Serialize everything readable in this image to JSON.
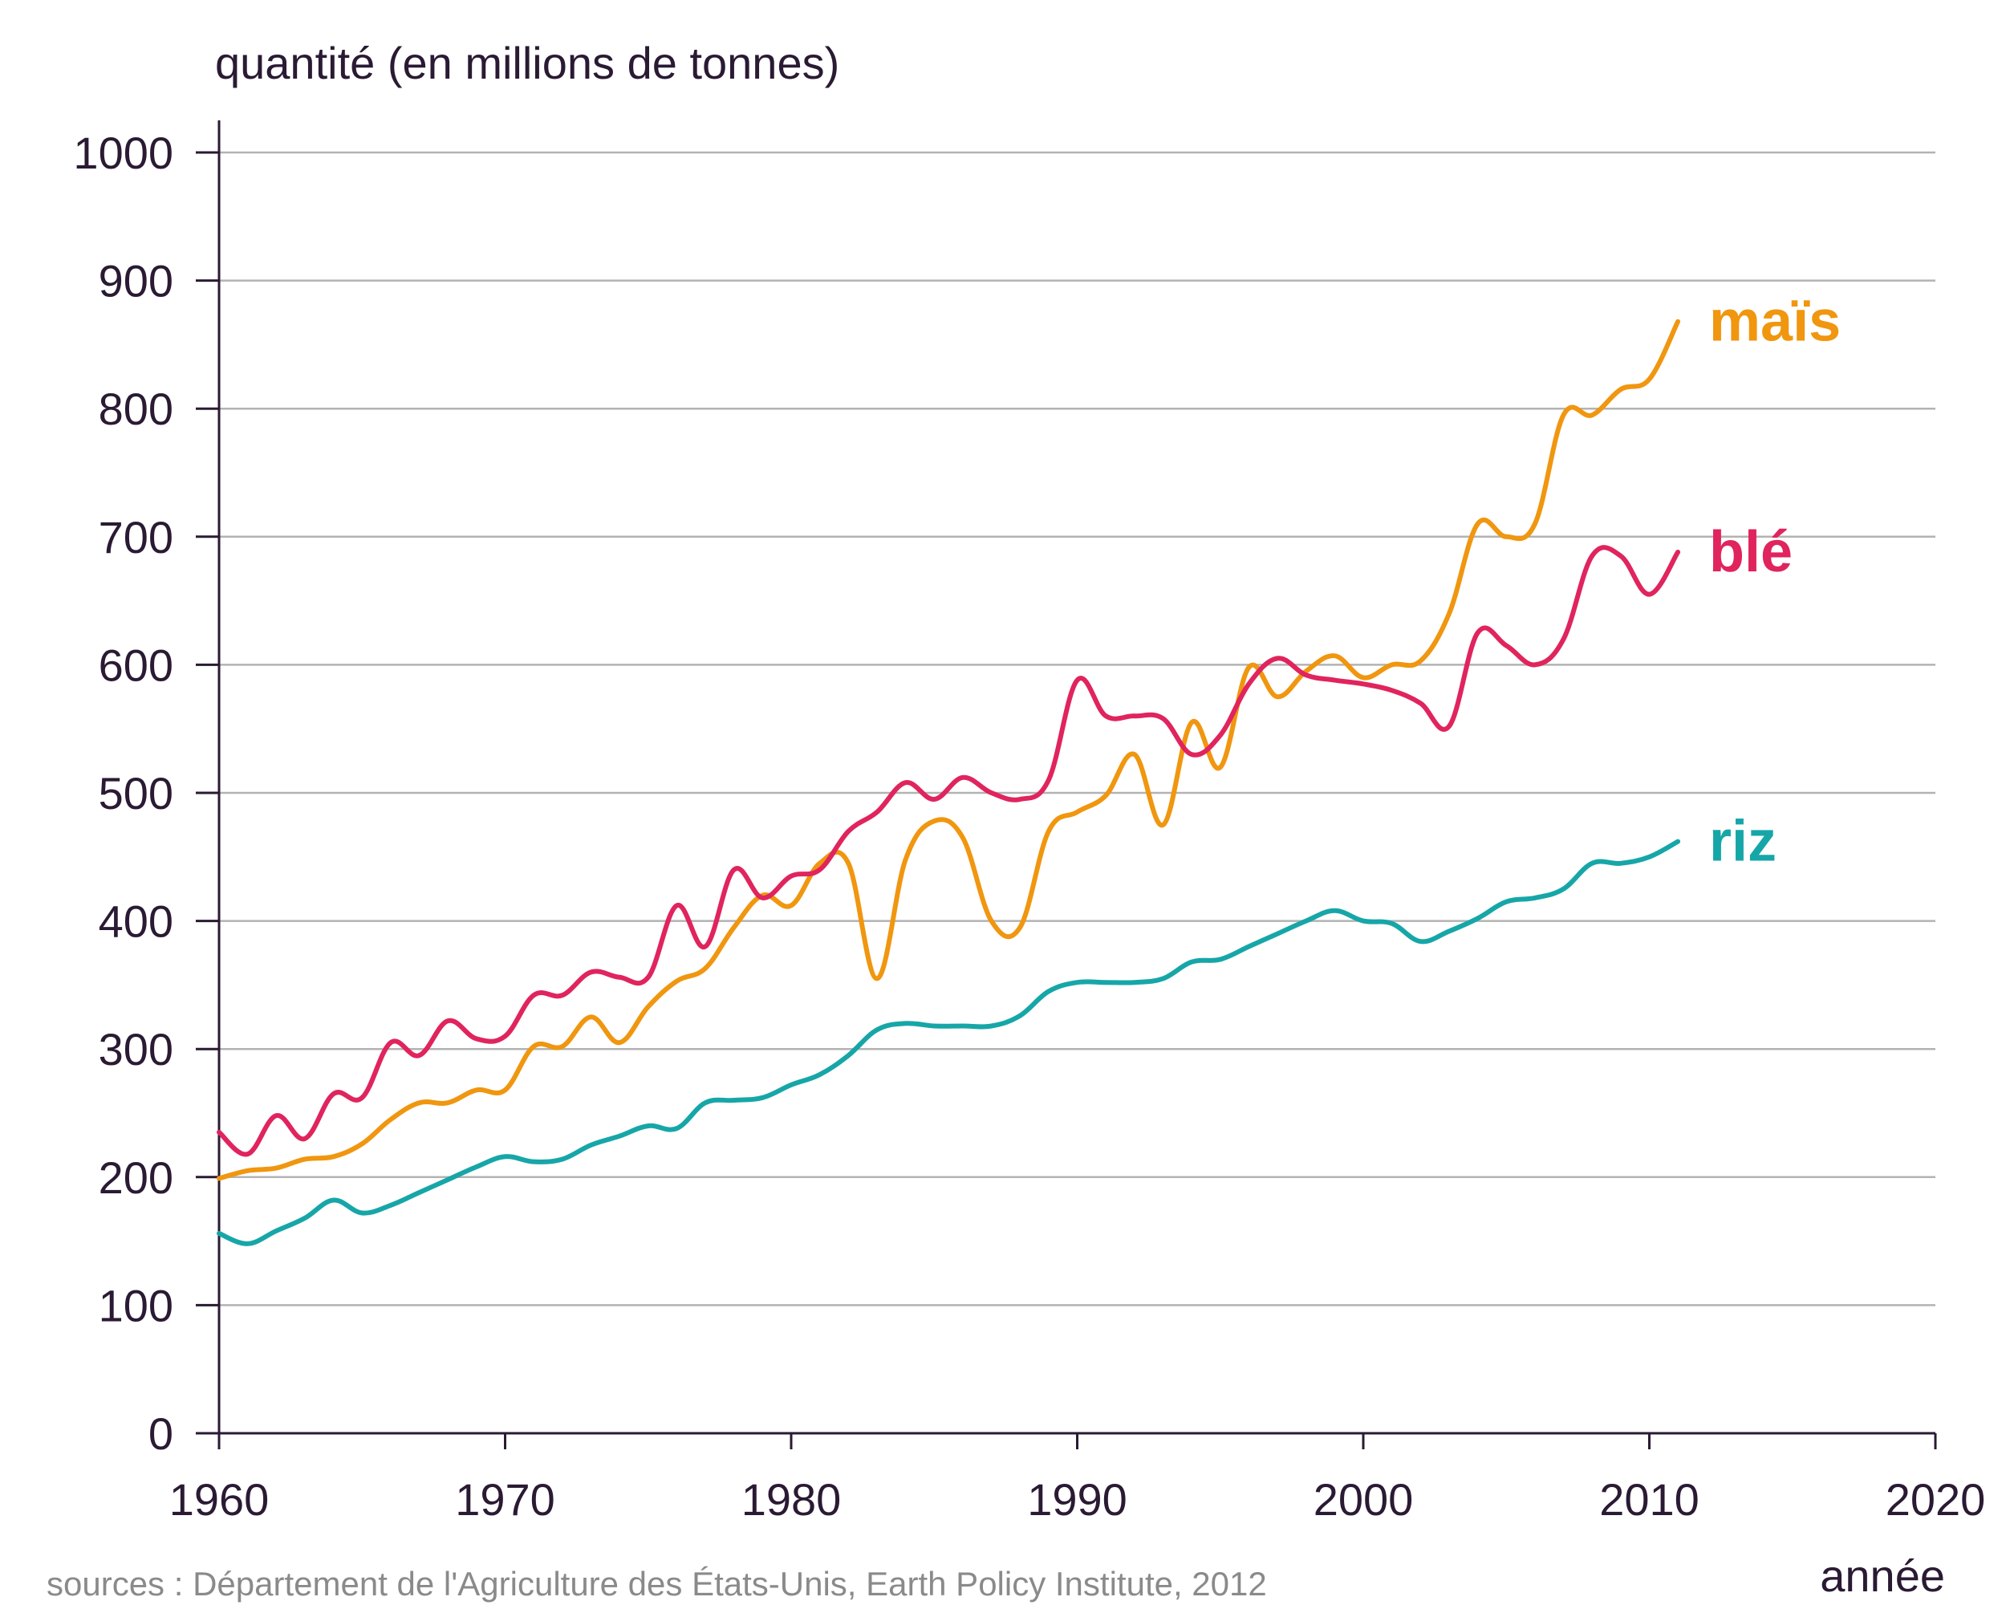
{
  "chart_data": {
    "type": "line",
    "ylabel": "quantité (en millions de tonnes)",
    "xlabel": "année",
    "source": "sources : Département de l'Agriculture des États-Unis, Earth Policy Institute, 2012",
    "xlim": [
      1960,
      2020
    ],
    "ylim": [
      0,
      1000
    ],
    "xticks": [
      1960,
      1970,
      1980,
      1990,
      2000,
      2010,
      2020
    ],
    "yticks": [
      0,
      100,
      200,
      300,
      400,
      500,
      600,
      700,
      800,
      900,
      1000
    ],
    "grid": true,
    "series": [
      {
        "name": "maïs",
        "color": "#f0960f",
        "x": [
          1960,
          1961,
          1962,
          1963,
          1964,
          1965,
          1966,
          1967,
          1968,
          1969,
          1970,
          1971,
          1972,
          1973,
          1974,
          1975,
          1976,
          1977,
          1978,
          1979,
          1980,
          1981,
          1982,
          1983,
          1984,
          1985,
          1986,
          1987,
          1988,
          1989,
          1990,
          1991,
          1992,
          1993,
          1994,
          1995,
          1996,
          1997,
          1998,
          1999,
          2000,
          2001,
          2002,
          2003,
          2004,
          2005,
          2006,
          2007,
          2008,
          2009,
          2010,
          2011
        ],
        "values": [
          199,
          205,
          207,
          214,
          216,
          226,
          245,
          258,
          258,
          268,
          268,
          302,
          302,
          325,
          305,
          333,
          353,
          363,
          395,
          420,
          412,
          445,
          445,
          355,
          448,
          478,
          465,
          400,
          395,
          470,
          485,
          498,
          530,
          475,
          555,
          520,
          598,
          575,
          595,
          607,
          590,
          600,
          603,
          640,
          710,
          700,
          710,
          795,
          795,
          815,
          823,
          868
        ]
      },
      {
        "name": "blé",
        "color": "#e0245e",
        "x": [
          1960,
          1961,
          1962,
          1963,
          1964,
          1965,
          1966,
          1967,
          1968,
          1969,
          1970,
          1971,
          1972,
          1973,
          1974,
          1975,
          1976,
          1977,
          1978,
          1979,
          1980,
          1981,
          1982,
          1983,
          1984,
          1985,
          1986,
          1987,
          1988,
          1989,
          1990,
          1991,
          1992,
          1993,
          1994,
          1995,
          1996,
          1997,
          1998,
          1999,
          2000,
          2001,
          2002,
          2003,
          2004,
          2005,
          2006,
          2007,
          2008,
          2009,
          2010,
          2011
        ],
        "values": [
          235,
          218,
          248,
          230,
          265,
          262,
          305,
          295,
          322,
          308,
          310,
          342,
          342,
          360,
          356,
          356,
          412,
          380,
          440,
          418,
          435,
          440,
          470,
          485,
          508,
          495,
          512,
          500,
          495,
          510,
          588,
          560,
          560,
          558,
          530,
          545,
          585,
          605,
          592,
          588,
          585,
          580,
          570,
          552,
          625,
          615,
          600,
          620,
          685,
          685,
          655,
          688
        ]
      },
      {
        "name": "riz",
        "color": "#17a6a8",
        "x": [
          1960,
          1961,
          1962,
          1963,
          1964,
          1965,
          1966,
          1967,
          1968,
          1969,
          1970,
          1971,
          1972,
          1973,
          1974,
          1975,
          1976,
          1977,
          1978,
          1979,
          1980,
          1981,
          1982,
          1983,
          1984,
          1985,
          1986,
          1987,
          1988,
          1989,
          1990,
          1991,
          1992,
          1993,
          1994,
          1995,
          1996,
          1997,
          1998,
          1999,
          2000,
          2001,
          2002,
          2003,
          2004,
          2005,
          2006,
          2007,
          2008,
          2009,
          2010,
          2011
        ],
        "values": [
          156,
          148,
          158,
          168,
          182,
          172,
          178,
          188,
          198,
          208,
          216,
          212,
          214,
          225,
          232,
          240,
          238,
          258,
          260,
          262,
          272,
          280,
          295,
          315,
          320,
          318,
          318,
          318,
          326,
          345,
          352,
          352,
          352,
          355,
          368,
          370,
          380,
          390,
          400,
          408,
          400,
          398,
          384,
          392,
          402,
          415,
          418,
          425,
          445,
          445,
          450,
          462
        ]
      }
    ]
  }
}
